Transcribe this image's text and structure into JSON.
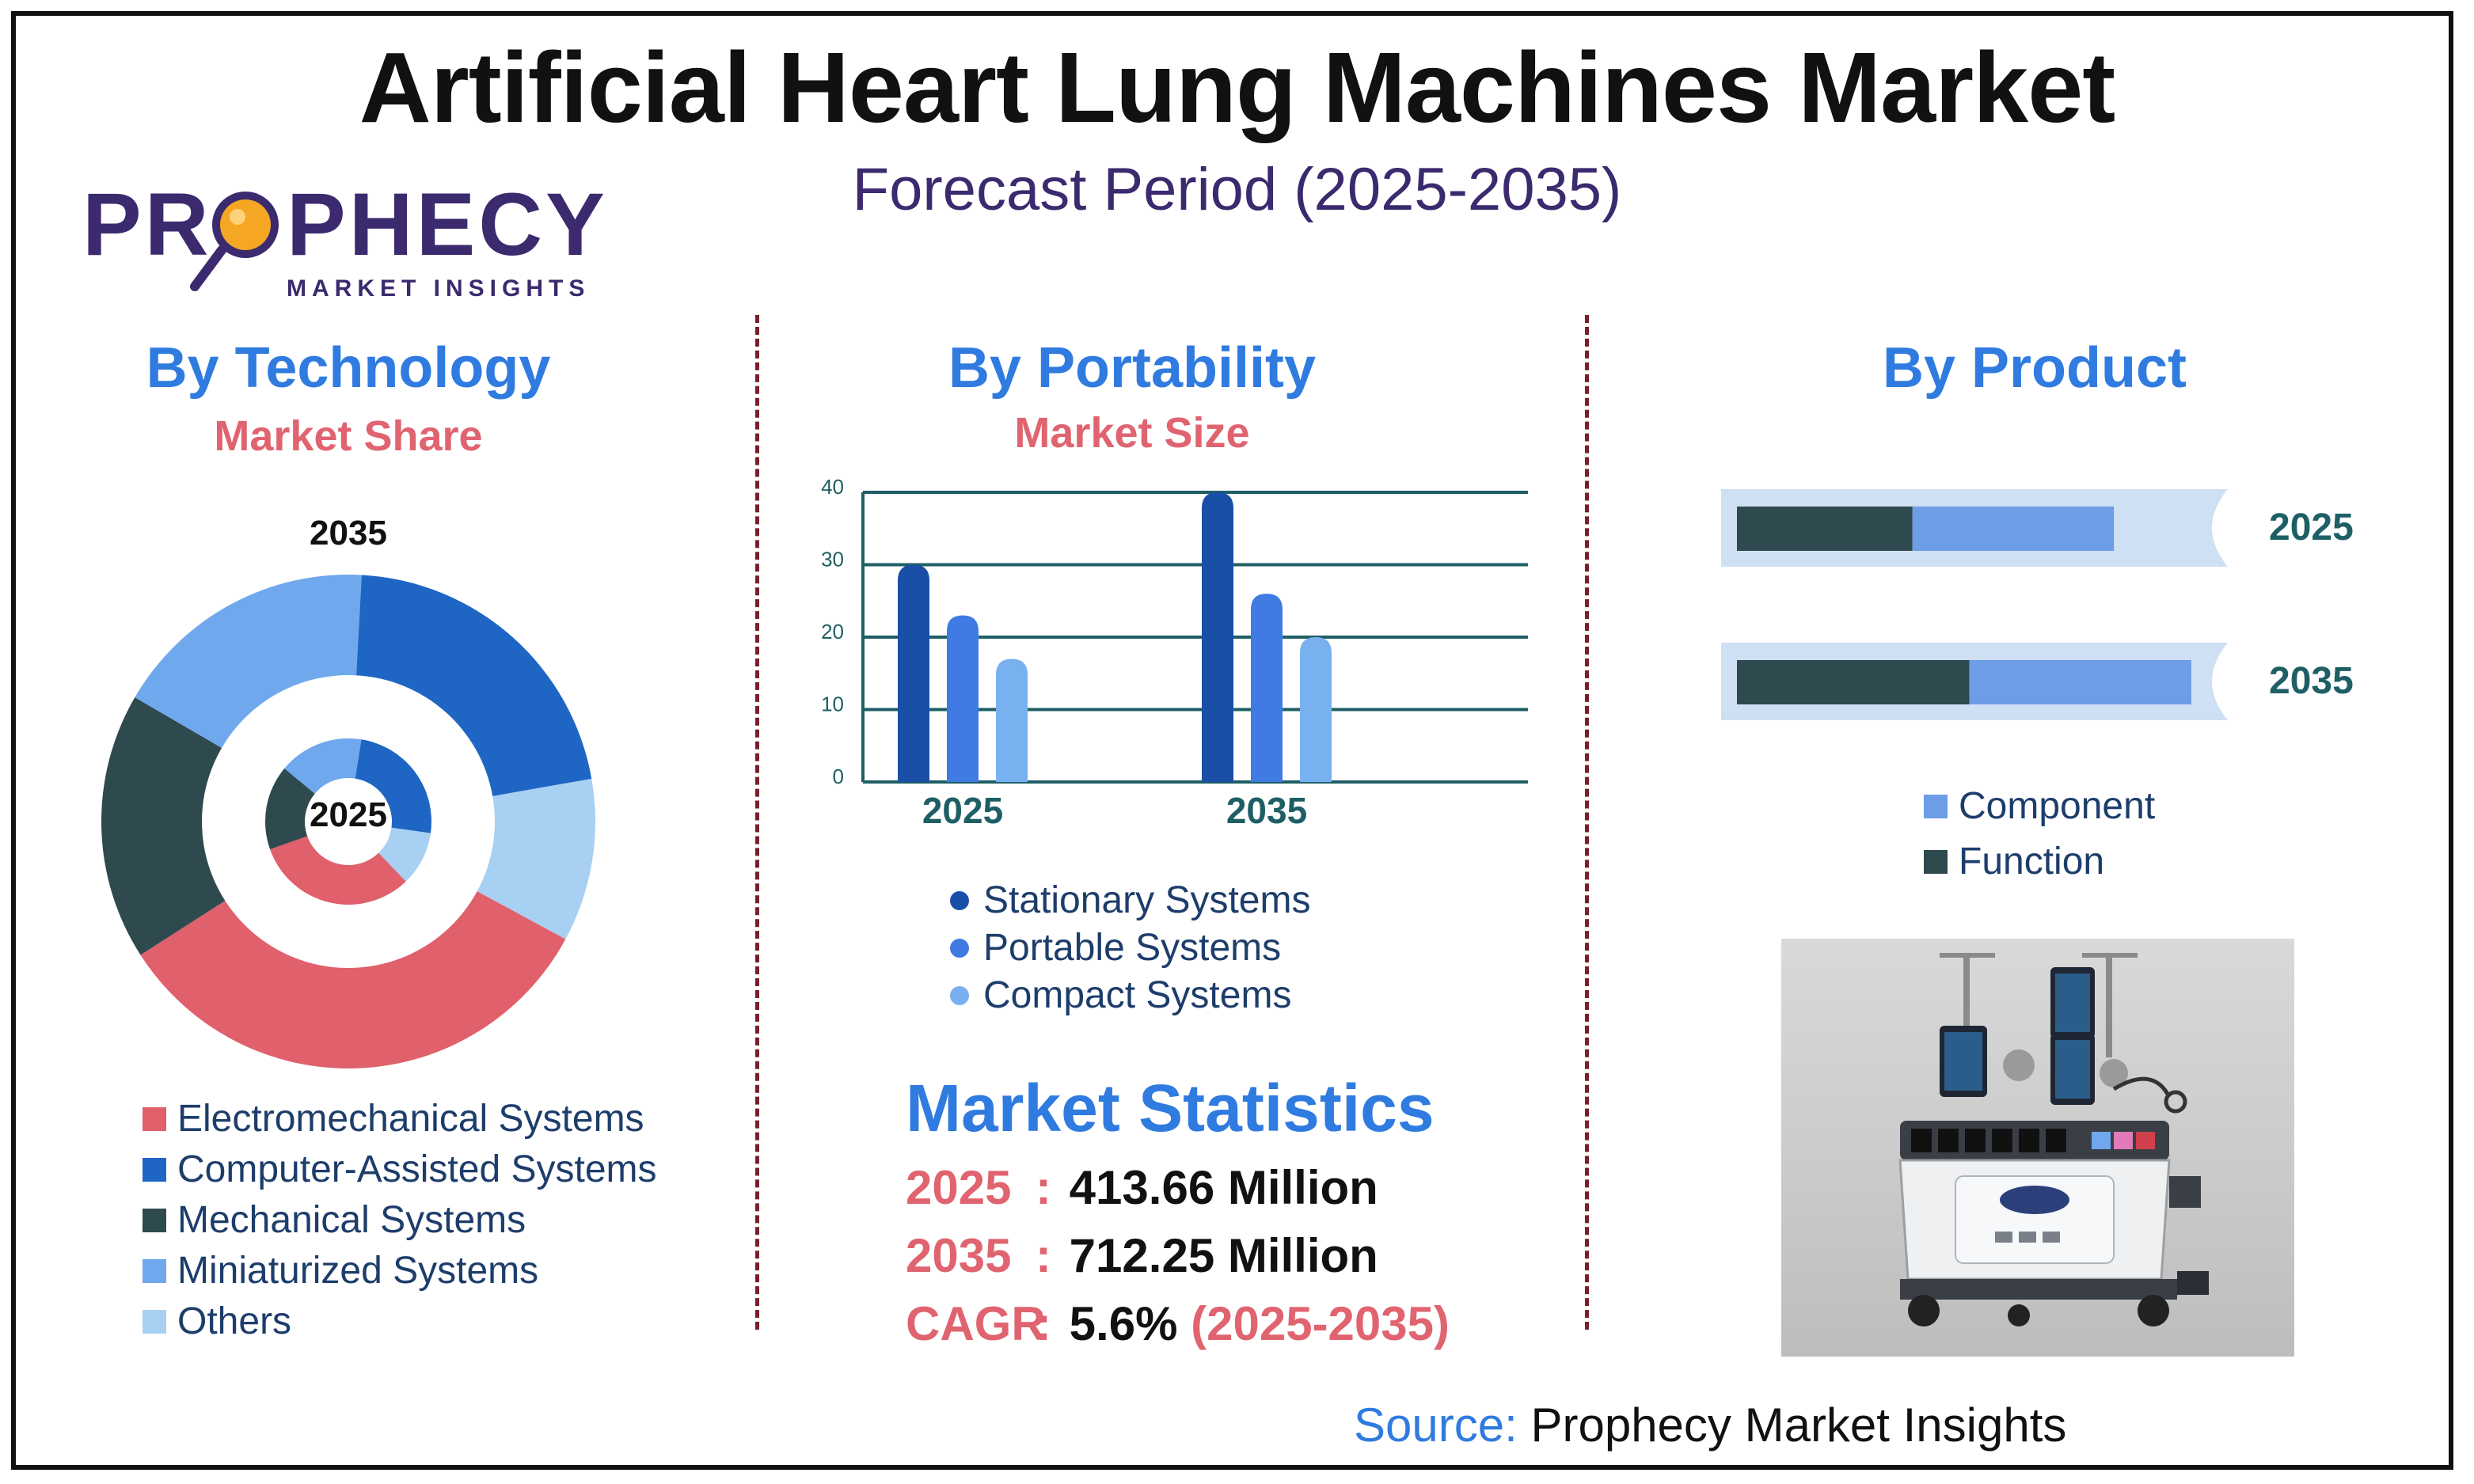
{
  "header": {
    "title": "Artificial Heart Lung Machines Market",
    "subtitle": "Forecast Period (2025-2035)"
  },
  "logo": {
    "name": "PROPHECY",
    "sub": "MARKET INSIGHTS"
  },
  "colors": {
    "electromechanical": "#e0606c",
    "computer_assisted": "#1f66c4",
    "mechanical": "#2f4a4e",
    "miniaturized": "#6fa8ec",
    "others": "#a8d0f2",
    "stationary": "#1a4fa8",
    "portable": "#3f7be2",
    "compact": "#79b0ef",
    "component": "#6d9de6",
    "function": "#2f4a4e",
    "bar_track": "#cfdff4"
  },
  "technology": {
    "title": "By Technology",
    "subtitle": "Market Share",
    "outer_label": "2035",
    "inner_label": "2025",
    "legend": [
      "Electromechanical Systems",
      "Computer-Assisted Systems",
      "Mechanical Systems",
      "Miniaturized Systems",
      "Others"
    ]
  },
  "portability": {
    "title": "By Portability",
    "subtitle": "Market Size",
    "legend": [
      "Stationary Systems",
      "Portable Systems",
      "Compact Systems"
    ]
  },
  "product": {
    "title": "By Product",
    "legend": [
      "Component",
      "Function"
    ]
  },
  "stats": {
    "title": "Market Statistics",
    "rows": [
      {
        "key": "2025",
        "value": "413.66 Million",
        "paren": ""
      },
      {
        "key": "2035",
        "value": "712.25 Million",
        "paren": ""
      },
      {
        "key": "CAGR",
        "value": "5.6%",
        "paren": "(2025-2035)"
      }
    ]
  },
  "source": {
    "label": "Source:",
    "text": "Prophecy Market Insights"
  },
  "chart_data": [
    {
      "type": "pie",
      "variant": "nested-donut",
      "title": "By Technology",
      "subtitle": "Market Share",
      "categories": [
        "Electromechanical Systems",
        "Computer-Assisted Systems",
        "Mechanical Systems",
        "Miniaturized Systems",
        "Others"
      ],
      "series": [
        {
          "name": "2025",
          "values": [
            27,
            21,
            14,
            14,
            9
          ],
          "ring": "inner"
        },
        {
          "name": "2035",
          "values": [
            34,
            22,
            18,
            18,
            11
          ],
          "ring": "outer"
        }
      ],
      "legend_position": "bottom"
    },
    {
      "type": "bar",
      "title": "By Portability",
      "subtitle": "Market Size",
      "categories": [
        "2025",
        "2035"
      ],
      "series": [
        {
          "name": "Stationary Systems",
          "values": [
            30,
            40
          ]
        },
        {
          "name": "Portable Systems",
          "values": [
            23,
            26
          ]
        },
        {
          "name": "Compact Systems",
          "values": [
            17,
            20
          ]
        }
      ],
      "ylim": [
        0,
        40
      ],
      "yticks": [
        0,
        10,
        20,
        30,
        40
      ],
      "grid": true,
      "legend_position": "bottom"
    },
    {
      "type": "bar",
      "orientation": "horizontal",
      "stacked": true,
      "title": "By Product",
      "categories": [
        "2025",
        "2035"
      ],
      "series": [
        {
          "name": "Function",
          "values": [
            0.34,
            0.45
          ]
        },
        {
          "name": "Component",
          "values": [
            0.39,
            0.43
          ]
        }
      ],
      "legend_position": "bottom"
    }
  ]
}
